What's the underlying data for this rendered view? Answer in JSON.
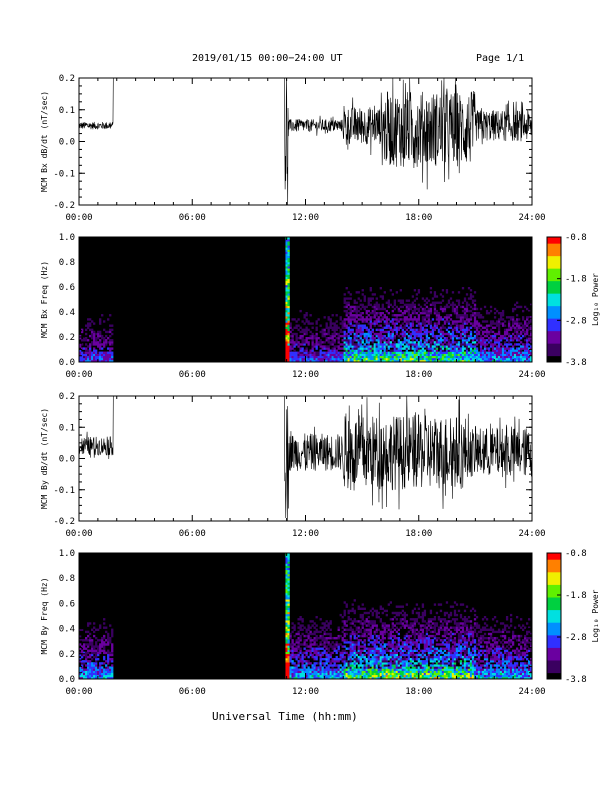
{
  "header": {
    "date_range": "2019/01/15   00:00−24:00 UT",
    "page": "Page 1/1"
  },
  "xlabel": "Universal Time (hh:mm)",
  "colorbar": {
    "label": "Log₁₀ Power",
    "tick_labels": [
      "-0.8",
      "-1.8",
      "-2.8",
      "-3.8"
    ],
    "range": [
      -3.8,
      -0.8
    ],
    "colors": [
      "#000000",
      "#3a0060",
      "#6a00a0",
      "#3030ff",
      "#0090ff",
      "#00e0e0",
      "#00d040",
      "#60f000",
      "#f0f000",
      "#ff8000",
      "#ff0000"
    ]
  },
  "chart_data": [
    {
      "type": "line",
      "ylabel": "MCM Bx dB/dt (nT/sec)",
      "xlim": [
        0,
        24
      ],
      "ylim": [
        -0.2,
        0.2
      ],
      "x_tick_labels": [
        "00:00",
        "06:00",
        "12:00",
        "18:00",
        "24:00"
      ],
      "y_tick_labels": [
        "0.2",
        "0.1",
        "0.0",
        "-0.1",
        "-0.2"
      ],
      "y_ticks": [
        0.2,
        0.1,
        0.0,
        -0.1,
        -0.2
      ],
      "series": [
        {
          "segments": [
            {
              "t_start": 0.0,
              "t_end": 1.8,
              "center": 0.05,
              "amplitude": 0.012
            },
            {
              "t_start": 1.8,
              "t_end": 10.9,
              "center": 0.2,
              "amplitude": 0.0
            },
            {
              "t_start": 10.9,
              "t_end": 11.1,
              "center": 0.0,
              "amplitude": 0.2
            },
            {
              "t_start": 11.1,
              "t_end": 14.0,
              "center": 0.05,
              "amplitude": 0.02
            },
            {
              "t_start": 14.0,
              "t_end": 16.0,
              "center": 0.05,
              "amplitude": 0.06
            },
            {
              "t_start": 16.0,
              "t_end": 21.0,
              "center": 0.04,
              "amplitude": 0.12
            },
            {
              "t_start": 21.0,
              "t_end": 24.0,
              "center": 0.05,
              "amplitude": 0.05
            }
          ]
        }
      ]
    },
    {
      "type": "heatmap",
      "ylabel": "MCM Bx Freq (Hz)",
      "xlim": [
        0,
        24
      ],
      "ylim": [
        0.0,
        1.0
      ],
      "x_tick_labels": [
        "00:00",
        "06:00",
        "12:00",
        "18:00",
        "24:00"
      ],
      "y_tick_labels": [
        "1.0",
        "0.8",
        "0.6",
        "0.4",
        "0.2",
        "0.0"
      ],
      "y_ticks": [
        1.0,
        0.8,
        0.6,
        0.4,
        0.2,
        0.0
      ],
      "activity": [
        {
          "t_start": 0.0,
          "t_end": 1.8,
          "level": 0.35
        },
        {
          "t_start": 10.9,
          "t_end": 11.1,
          "level": 1.0
        },
        {
          "t_start": 11.1,
          "t_end": 14.0,
          "level": 0.35
        },
        {
          "t_start": 14.0,
          "t_end": 21.0,
          "level": 0.65
        },
        {
          "t_start": 21.0,
          "t_end": 24.0,
          "level": 0.45
        }
      ]
    },
    {
      "type": "line",
      "ylabel": "MCM By dB/dt (nT/sec)",
      "xlim": [
        0,
        24
      ],
      "ylim": [
        -0.2,
        0.2
      ],
      "x_tick_labels": [
        "00:00",
        "06:00",
        "12:00",
        "18:00",
        "24:00"
      ],
      "y_tick_labels": [
        "0.2",
        "0.1",
        "0.0",
        "-0.1",
        "-0.2"
      ],
      "y_ticks": [
        0.2,
        0.1,
        0.0,
        -0.1,
        -0.2
      ],
      "series": [
        {
          "segments": [
            {
              "t_start": 0.0,
              "t_end": 1.8,
              "center": 0.04,
              "amplitude": 0.03
            },
            {
              "t_start": 1.8,
              "t_end": 10.9,
              "center": 0.2,
              "amplitude": 0.0
            },
            {
              "t_start": 10.9,
              "t_end": 11.1,
              "center": 0.0,
              "amplitude": 0.2
            },
            {
              "t_start": 11.1,
              "t_end": 14.0,
              "center": 0.02,
              "amplitude": 0.06
            },
            {
              "t_start": 14.0,
              "t_end": 20.5,
              "center": 0.02,
              "amplitude": 0.12
            },
            {
              "t_start": 20.5,
              "t_end": 24.0,
              "center": 0.02,
              "amplitude": 0.08
            }
          ]
        }
      ]
    },
    {
      "type": "heatmap",
      "ylabel": "MCM By Freq (Hz)",
      "xlim": [
        0,
        24
      ],
      "ylim": [
        0.0,
        1.0
      ],
      "x_tick_labels": [
        "00:00",
        "06:00",
        "12:00",
        "18:00",
        "24:00"
      ],
      "y_tick_labels": [
        "1.0",
        "0.8",
        "0.6",
        "0.4",
        "0.2",
        "0.0"
      ],
      "y_ticks": [
        1.0,
        0.8,
        0.6,
        0.4,
        0.2,
        0.0
      ],
      "activity": [
        {
          "t_start": 0.0,
          "t_end": 1.8,
          "level": 0.45
        },
        {
          "t_start": 10.9,
          "t_end": 11.1,
          "level": 1.0
        },
        {
          "t_start": 11.1,
          "t_end": 14.0,
          "level": 0.5
        },
        {
          "t_start": 14.0,
          "t_end": 21.0,
          "level": 0.7
        },
        {
          "t_start": 21.0,
          "t_end": 24.0,
          "level": 0.5
        }
      ]
    }
  ]
}
